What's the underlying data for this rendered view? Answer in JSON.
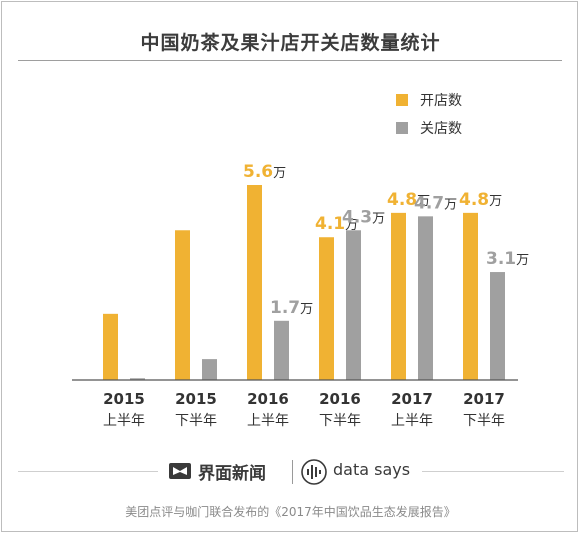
{
  "title": "中国奶茶及果汁店开关店数量统计",
  "source": "美团点评与咖门联合发布的《2017年中国饮品生态发展报告》",
  "brand": {
    "jiemian": "界面新闻",
    "datasays": "data says",
    "jiemian_icon": "jiemian-logo-icon",
    "datasays_icon": "sound-wave-icon"
  },
  "colors": {
    "open": "#f0b233",
    "close": "#a0a0a0",
    "axis": "#555555",
    "label_open": "#f0b233",
    "label_close": "#a0a0a0",
    "unit": "#333333"
  },
  "chart_data": {
    "type": "bar",
    "title": "中国奶茶及果汁店开关店数量统计",
    "categories": [
      {
        "year": "2015",
        "half": "上半年"
      },
      {
        "year": "2015",
        "half": "下半年"
      },
      {
        "year": "2016",
        "half": "上半年"
      },
      {
        "year": "2016",
        "half": "下半年"
      },
      {
        "year": "2017",
        "half": "上半年"
      },
      {
        "year": "2017",
        "half": "下半年"
      }
    ],
    "unit": "万",
    "legend_position": "top-right",
    "series": [
      {
        "name": "开店数",
        "color": "#f0b233",
        "values": [
          1.9,
          4.3,
          5.6,
          4.1,
          4.8,
          4.8
        ],
        "labels": [
          "",
          "",
          "5.6",
          "4.1",
          "4.8",
          "4.8"
        ]
      },
      {
        "name": "关店数",
        "color": "#a0a0a0",
        "values": [
          0.05,
          0.6,
          1.7,
          4.3,
          4.7,
          3.1
        ],
        "labels": [
          "",
          "",
          "1.7",
          "4.3",
          "4.7",
          "3.1"
        ]
      }
    ],
    "ylim": [
      0,
      5.6
    ],
    "grid": false
  }
}
